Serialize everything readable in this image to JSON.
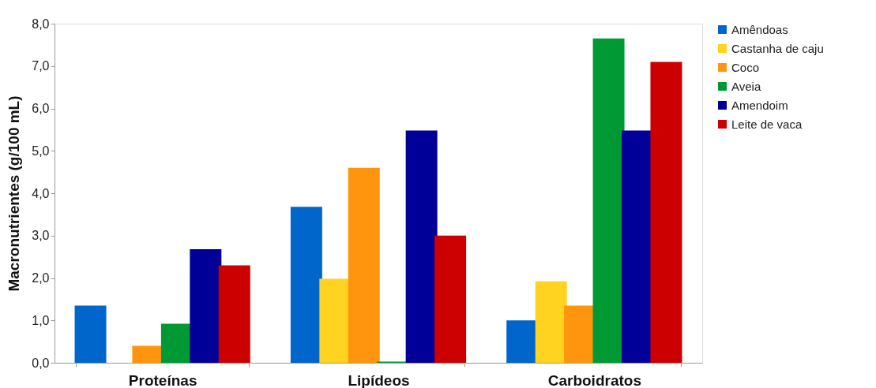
{
  "chart_data": {
    "type": "bar",
    "ylabel": "Macronutrientes (g/100 mL)",
    "categories": [
      "Proteínas",
      "Lipídeos",
      "Carboidratos"
    ],
    "series": [
      {
        "name": "Amêndoas",
        "color": "#0066cc",
        "values": [
          1.35,
          3.68,
          1.0
        ]
      },
      {
        "name": "Castanha de caju",
        "color": "#ffd320",
        "values": [
          null,
          1.98,
          1.92
        ]
      },
      {
        "name": "Coco",
        "color": "#ff950e",
        "values": [
          0.4,
          4.6,
          1.35
        ]
      },
      {
        "name": "Aveia",
        "color": "#009933",
        "values": [
          0.92,
          0.03,
          7.65
        ]
      },
      {
        "name": "Amendoim",
        "color": "#000099",
        "values": [
          2.68,
          5.48,
          5.48
        ]
      },
      {
        "name": "Leite de vaca",
        "color": "#cc0000",
        "values": [
          2.3,
          3.0,
          7.1
        ]
      }
    ],
    "ylim": [
      0,
      8
    ],
    "yticks": [
      {
        "value": 0,
        "label": "0,0"
      },
      {
        "value": 1,
        "label": "1,0"
      },
      {
        "value": 2,
        "label": "2,0"
      },
      {
        "value": 3,
        "label": "3,0"
      },
      {
        "value": 4,
        "label": "4,0"
      },
      {
        "value": 5,
        "label": "5,0"
      },
      {
        "value": 6,
        "label": "6,0"
      },
      {
        "value": 7,
        "label": "7,0"
      },
      {
        "value": 8,
        "label": "8,0"
      }
    ],
    "grid": false,
    "legend": "right"
  }
}
